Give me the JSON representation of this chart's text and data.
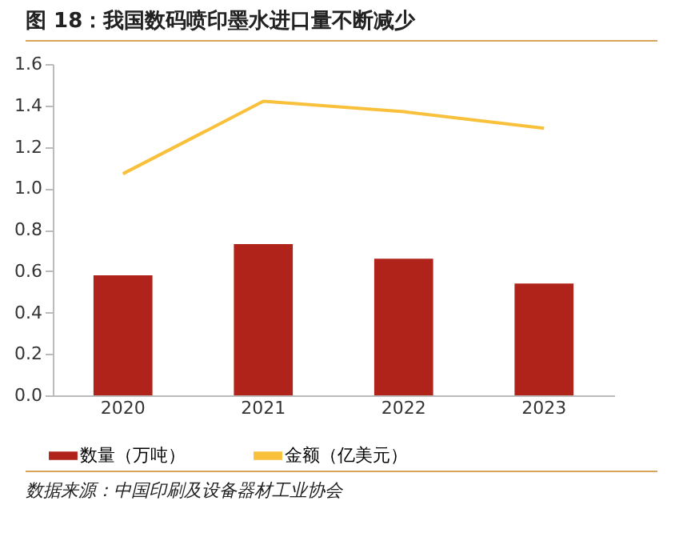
{
  "chart_data": {
    "type": "bar",
    "title": "图 18：我国数码喷印墨水进口量不断减少",
    "categories": [
      "2020",
      "2021",
      "2022",
      "2023"
    ],
    "series": [
      {
        "name": "数量（万吨）",
        "color": "#b0231a",
        "values": [
          0.58,
          0.73,
          0.66,
          0.54
        ]
      },
      {
        "name": "金额（亿美元）",
        "type": "line",
        "color": "#f9c03b",
        "values": [
          1.07,
          1.42,
          1.37,
          1.29
        ]
      }
    ],
    "ylim": [
      0,
      1.6
    ],
    "yticks": [
      {
        "value": 0,
        "label": "0.0"
      },
      0.2,
      0.4,
      0.6,
      0.8,
      {
        "value": 1,
        "label": "1.0"
      },
      1.2,
      1.4,
      1.6
    ],
    "grid": false,
    "legend": "bottom",
    "annotations": [
      "数据来源：中国印刷及设备器材工业协会"
    ]
  }
}
